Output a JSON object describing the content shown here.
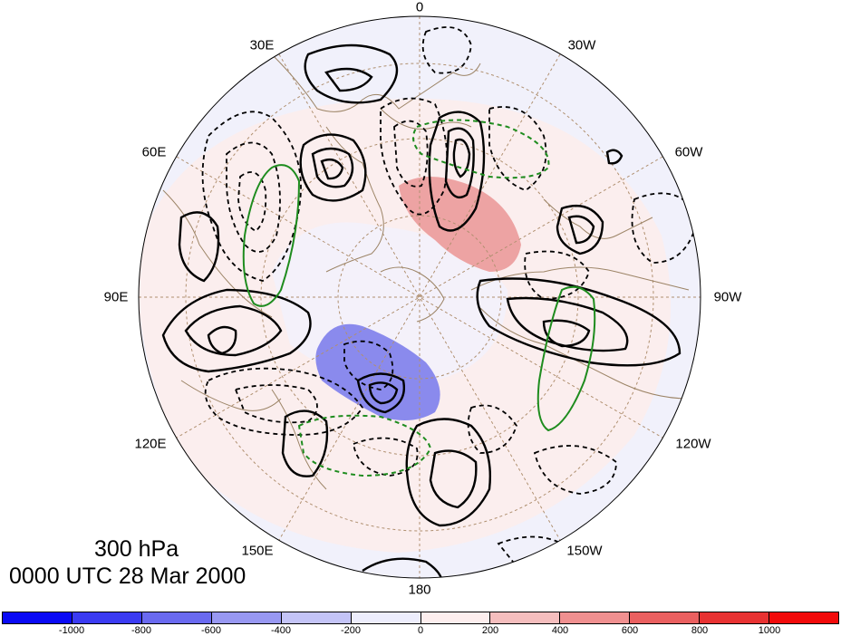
{
  "map": {
    "level_label": "300 hPa",
    "time_label": "0000 UTC 28 Mar 2000",
    "longitude_labels": [
      {
        "text": "0"
      },
      {
        "text": "30W"
      },
      {
        "text": "60W"
      },
      {
        "text": "90W"
      },
      {
        "text": "120W"
      },
      {
        "text": "150W"
      },
      {
        "text": "180"
      },
      {
        "text": "150E"
      },
      {
        "text": "120E"
      },
      {
        "text": "90E"
      },
      {
        "text": "60E"
      },
      {
        "text": "30E"
      }
    ],
    "projection": "north polar stereographic",
    "colors": {
      "negative_contour": "#000000",
      "positive_contour": "#000000",
      "green_contour": "#1e8c1e",
      "coastline": "#9c8466",
      "grid": "#b09070"
    }
  },
  "colorbar": {
    "ticks": [
      "-1000",
      "-800",
      "-600",
      "-400",
      "-200",
      "0",
      "200",
      "400",
      "600",
      "800",
      "1000"
    ],
    "colors": [
      "#0a0af5",
      "#3b3bf2",
      "#6a6af0",
      "#9898f2",
      "#c4c4f7",
      "#ededfc",
      "#fdeeee",
      "#f5bebe",
      "#f09090",
      "#ea6060",
      "#e83232",
      "#f20a0a"
    ]
  }
}
